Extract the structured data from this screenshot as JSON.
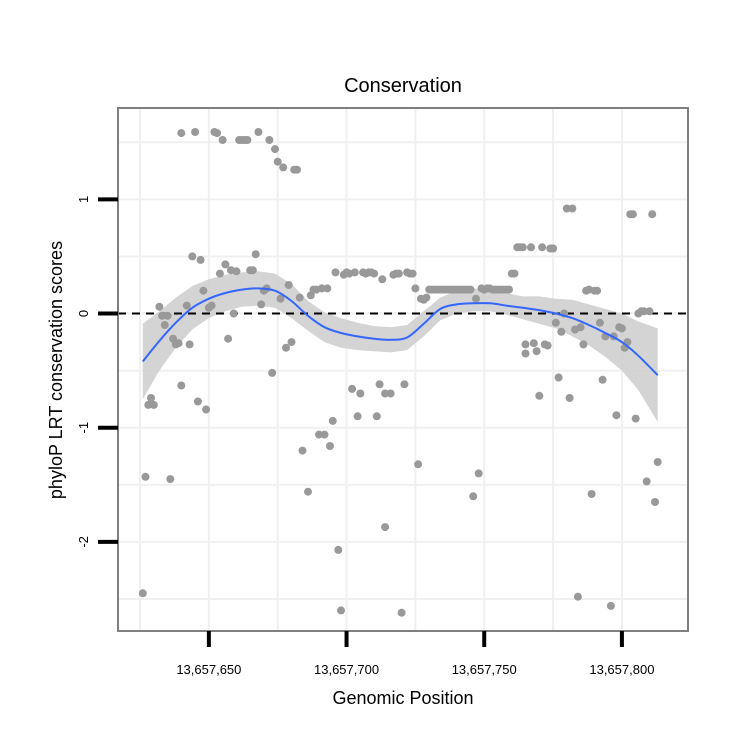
{
  "chart_data": {
    "type": "scatter",
    "title": "Conservation",
    "xlabel": "Genomic Position",
    "ylabel": "phyloP LRT conservation scores",
    "xlim": [
      13657617,
      13657824
    ],
    "ylim": [
      -2.78,
      1.8
    ],
    "x_ticks": [
      {
        "value": 13657650,
        "label": "13,657,650"
      },
      {
        "value": 13657700,
        "label": "13,657,700"
      },
      {
        "value": 13657750,
        "label": "13,657,750"
      },
      {
        "value": 13657800,
        "label": "13,657,800"
      }
    ],
    "y_ticks": [
      {
        "value": -2,
        "label": "-2"
      },
      {
        "value": -1,
        "label": "-1"
      },
      {
        "value": 0,
        "label": "0"
      },
      {
        "value": 1,
        "label": "1"
      }
    ],
    "reference_line": {
      "y": 0,
      "style": "dashed"
    },
    "grid": true,
    "colors": {
      "points": "#999999",
      "smooth": "#3366ff",
      "band": "#cccccc",
      "frame": "#7f7f7f",
      "grid": "#f0f0f0"
    },
    "points": [
      [
        13657626,
        -2.45
      ],
      [
        13657627,
        -1.43
      ],
      [
        13657628,
        -0.8
      ],
      [
        13657629,
        -0.74
      ],
      [
        13657630,
        -0.8
      ],
      [
        13657632,
        0.06
      ],
      [
        13657633,
        -0.02
      ],
      [
        13657634,
        -0.1
      ],
      [
        13657635,
        -0.02
      ],
      [
        13657636,
        -1.45
      ],
      [
        13657637,
        -0.22
      ],
      [
        13657638,
        -0.27
      ],
      [
        13657639,
        -0.26
      ],
      [
        13657640,
        -0.63
      ],
      [
        13657640,
        1.58
      ],
      [
        13657642,
        0.07
      ],
      [
        13657643,
        -0.27
      ],
      [
        13657644,
        0.5
      ],
      [
        13657645,
        1.59
      ],
      [
        13657646,
        -0.77
      ],
      [
        13657647,
        0.47
      ],
      [
        13657648,
        0.2
      ],
      [
        13657649,
        -0.84
      ],
      [
        13657650,
        0.05
      ],
      [
        13657651,
        0.07
      ],
      [
        13657652,
        1.59
      ],
      [
        13657653,
        1.58
      ],
      [
        13657654,
        0.35
      ],
      [
        13657655,
        1.52
      ],
      [
        13657656,
        0.43
      ],
      [
        13657657,
        -0.22
      ],
      [
        13657658,
        0.38
      ],
      [
        13657659,
        0.0
      ],
      [
        13657660,
        0.37
      ],
      [
        13657661,
        1.52
      ],
      [
        13657662,
        1.52
      ],
      [
        13657663,
        1.52
      ],
      [
        13657664,
        1.52
      ],
      [
        13657665,
        0.38
      ],
      [
        13657666,
        0.38
      ],
      [
        13657667,
        0.52
      ],
      [
        13657668,
        1.59
      ],
      [
        13657669,
        0.08
      ],
      [
        13657670,
        0.2
      ],
      [
        13657671,
        0.22
      ],
      [
        13657672,
        1.52
      ],
      [
        13657673,
        -0.52
      ],
      [
        13657674,
        1.44
      ],
      [
        13657675,
        1.33
      ],
      [
        13657676,
        0.13
      ],
      [
        13657677,
        1.28
      ],
      [
        13657678,
        -0.3
      ],
      [
        13657679,
        0.25
      ],
      [
        13657680,
        -0.25
      ],
      [
        13657681,
        1.26
      ],
      [
        13657682,
        1.26
      ],
      [
        13657683,
        0.14
      ],
      [
        13657684,
        -1.2
      ],
      [
        13657686,
        -1.56
      ],
      [
        13657687,
        0.16
      ],
      [
        13657688,
        0.21
      ],
      [
        13657689,
        0.21
      ],
      [
        13657690,
        -1.06
      ],
      [
        13657691,
        0.22
      ],
      [
        13657692,
        -1.06
      ],
      [
        13657693,
        0.22
      ],
      [
        13657694,
        -1.16
      ],
      [
        13657695,
        -0.94
      ],
      [
        13657696,
        0.36
      ],
      [
        13657697,
        -2.07
      ],
      [
        13657698,
        -2.6
      ],
      [
        13657699,
        0.34
      ],
      [
        13657700,
        0.36
      ],
      [
        13657701,
        0.35
      ],
      [
        13657702,
        -0.66
      ],
      [
        13657703,
        0.36
      ],
      [
        13657704,
        -0.9
      ],
      [
        13657705,
        -0.7
      ],
      [
        13657706,
        0.36
      ],
      [
        13657707,
        0.35
      ],
      [
        13657708,
        0.36
      ],
      [
        13657709,
        0.36
      ],
      [
        13657710,
        0.35
      ],
      [
        13657711,
        -0.9
      ],
      [
        13657712,
        -0.62
      ],
      [
        13657713,
        0.3
      ],
      [
        13657714,
        -1.87
      ],
      [
        13657714,
        -0.7
      ],
      [
        13657716,
        -0.7
      ],
      [
        13657717,
        0.34
      ],
      [
        13657718,
        0.35
      ],
      [
        13657719,
        0.35
      ],
      [
        13657720,
        -2.62
      ],
      [
        13657721,
        -0.62
      ],
      [
        13657722,
        0.36
      ],
      [
        13657723,
        0.35
      ],
      [
        13657724,
        0.35
      ],
      [
        13657725,
        0.22
      ],
      [
        13657726,
        -1.32
      ],
      [
        13657727,
        0.13
      ],
      [
        13657728,
        0.12
      ],
      [
        13657729,
        0.14
      ],
      [
        13657730,
        0.21
      ],
      [
        13657731,
        0.21
      ],
      [
        13657732,
        0.21
      ],
      [
        13657733,
        0.21
      ],
      [
        13657734,
        0.21
      ],
      [
        13657735,
        0.21
      ],
      [
        13657736,
        0.21
      ],
      [
        13657737,
        0.21
      ],
      [
        13657738,
        0.21
      ],
      [
        13657739,
        0.21
      ],
      [
        13657740,
        0.21
      ],
      [
        13657741,
        0.21
      ],
      [
        13657742,
        0.21
      ],
      [
        13657743,
        0.21
      ],
      [
        13657744,
        0.21
      ],
      [
        13657745,
        0.21
      ],
      [
        13657746,
        -1.6
      ],
      [
        13657747,
        0.13
      ],
      [
        13657748,
        -1.4
      ],
      [
        13657749,
        0.22
      ],
      [
        13657750,
        0.21
      ],
      [
        13657751,
        0.22
      ],
      [
        13657752,
        0.22
      ],
      [
        13657753,
        0.21
      ],
      [
        13657754,
        0.21
      ],
      [
        13657755,
        0.21
      ],
      [
        13657756,
        0.21
      ],
      [
        13657757,
        0.21
      ],
      [
        13657758,
        0.21
      ],
      [
        13657759,
        0.21
      ],
      [
        13657760,
        0.35
      ],
      [
        13657761,
        0.35
      ],
      [
        13657762,
        0.58
      ],
      [
        13657763,
        0.58
      ],
      [
        13657764,
        0.58
      ],
      [
        13657765,
        -0.27
      ],
      [
        13657765,
        -0.35
      ],
      [
        13657767,
        0.58
      ],
      [
        13657768,
        -0.26
      ],
      [
        13657769,
        -0.33
      ],
      [
        13657770,
        -0.72
      ],
      [
        13657771,
        0.58
      ],
      [
        13657772,
        -0.27
      ],
      [
        13657773,
        -0.28
      ],
      [
        13657774,
        0.57
      ],
      [
        13657775,
        0.57
      ],
      [
        13657776,
        -0.08
      ],
      [
        13657777,
        -0.56
      ],
      [
        13657778,
        -0.16
      ],
      [
        13657779,
        0.0
      ],
      [
        13657780,
        0.92
      ],
      [
        13657781,
        -0.74
      ],
      [
        13657782,
        0.92
      ],
      [
        13657783,
        -0.14
      ],
      [
        13657784,
        -2.48
      ],
      [
        13657785,
        -0.12
      ],
      [
        13657786,
        -0.27
      ],
      [
        13657787,
        0.2
      ],
      [
        13657788,
        0.21
      ],
      [
        13657789,
        -1.58
      ],
      [
        13657790,
        0.2
      ],
      [
        13657791,
        0.2
      ],
      [
        13657792,
        -0.08
      ],
      [
        13657793,
        -0.58
      ],
      [
        13657794,
        -0.2
      ],
      [
        13657796,
        -2.56
      ],
      [
        13657797,
        -0.2
      ],
      [
        13657798,
        -0.89
      ],
      [
        13657799,
        -0.12
      ],
      [
        13657800,
        -0.13
      ],
      [
        13657801,
        -0.3
      ],
      [
        13657802,
        -0.25
      ],
      [
        13657803,
        0.87
      ],
      [
        13657804,
        0.87
      ],
      [
        13657805,
        -0.92
      ],
      [
        13657806,
        0.0
      ],
      [
        13657807,
        0.02
      ],
      [
        13657808,
        0.02
      ],
      [
        13657809,
        -1.47
      ],
      [
        13657810,
        0.02
      ],
      [
        13657811,
        0.87
      ],
      [
        13657812,
        -1.65
      ],
      [
        13657813,
        -1.3
      ]
    ],
    "smooth": {
      "x": [
        13657626,
        13657632,
        13657638,
        13657644,
        13657650,
        13657656,
        13657662,
        13657668,
        13657674,
        13657680,
        13657686,
        13657692,
        13657698,
        13657704,
        13657710,
        13657716,
        13657722,
        13657728,
        13657734,
        13657740,
        13657746,
        13657752,
        13657758,
        13657764,
        13657770,
        13657776,
        13657782,
        13657788,
        13657794,
        13657800,
        13657806,
        13657813
      ],
      "y": [
        -0.42,
        -0.24,
        -0.08,
        0.05,
        0.13,
        0.18,
        0.21,
        0.22,
        0.2,
        0.11,
        -0.02,
        -0.12,
        -0.17,
        -0.2,
        -0.22,
        -0.23,
        -0.21,
        -0.09,
        0.04,
        0.08,
        0.09,
        0.09,
        0.07,
        0.05,
        0.03,
        0.0,
        -0.04,
        -0.1,
        -0.17,
        -0.25,
        -0.37,
        -0.54
      ],
      "lower": [
        -0.75,
        -0.5,
        -0.3,
        -0.14,
        -0.04,
        0.02,
        0.06,
        0.07,
        0.05,
        -0.04,
        -0.15,
        -0.25,
        -0.3,
        -0.32,
        -0.33,
        -0.34,
        -0.32,
        -0.2,
        -0.06,
        0.0,
        0.02,
        0.02,
        -0.01,
        -0.05,
        -0.09,
        -0.13,
        -0.2,
        -0.28,
        -0.38,
        -0.5,
        -0.67,
        -0.95
      ],
      "upper": [
        -0.09,
        0.02,
        0.14,
        0.24,
        0.3,
        0.34,
        0.36,
        0.37,
        0.35,
        0.26,
        0.11,
        0.01,
        -0.04,
        -0.08,
        -0.11,
        -0.12,
        -0.1,
        0.02,
        0.14,
        0.2,
        0.22,
        0.21,
        0.18,
        0.15,
        0.15,
        0.13,
        0.12,
        0.08,
        0.04,
        0.0,
        -0.07,
        -0.13
      ]
    }
  }
}
